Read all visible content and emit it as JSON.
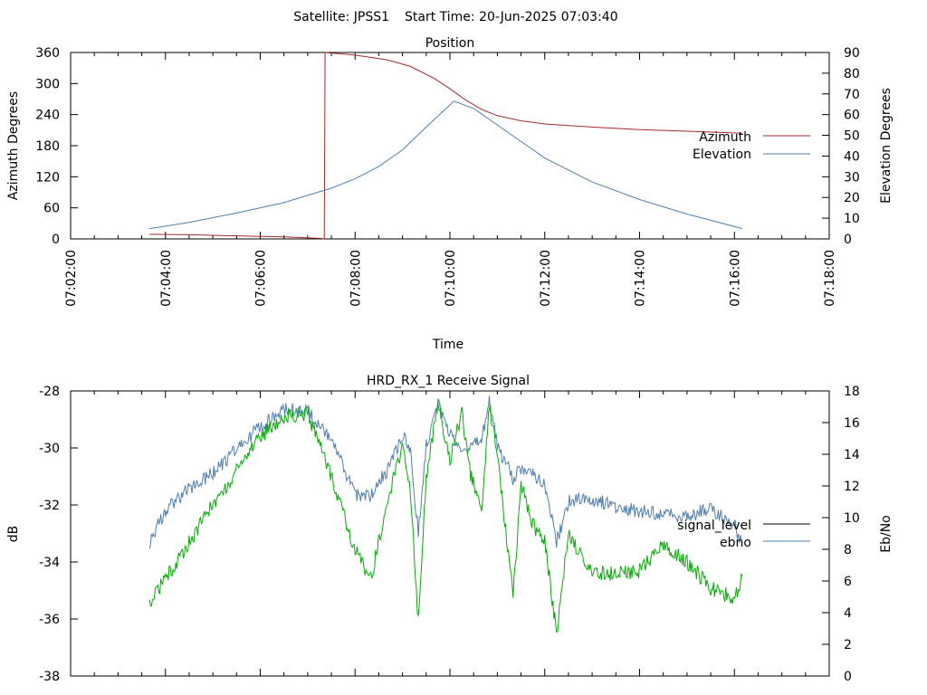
{
  "header": {
    "satellite_label": "Satellite: JPSS1",
    "start_time_label": "Start Time: 20-Jun-2025 07:03:40"
  },
  "chart_data": [
    {
      "type": "line",
      "title": "Position",
      "xlabel": "Time",
      "ylabel": "Azimuth Degrees",
      "y2label": "Elevation Degrees",
      "xlim": [
        "07:02:00",
        "07:18:00"
      ],
      "ylim": [
        0,
        360
      ],
      "y2lim": [
        0,
        90
      ],
      "x_ticks": [
        "07:02:00",
        "07:04:00",
        "07:06:00",
        "07:08:00",
        "07:10:00",
        "07:12:00",
        "07:14:00",
        "07:16:00",
        "07:18:00"
      ],
      "y_ticks": [
        "0",
        "60",
        "120",
        "180",
        "240",
        "300",
        "360"
      ],
      "y2_ticks": [
        "0",
        "10",
        "20",
        "30",
        "40",
        "50",
        "60",
        "70",
        "80",
        "90"
      ],
      "grid": false,
      "legend_position": "right",
      "series": [
        {
          "name": "Azimuth",
          "axis": "left",
          "color": "#a52a2a",
          "x": [
            "07:03:40",
            "07:04:30",
            "07:05:30",
            "07:06:30",
            "07:07:15",
            "07:07:21",
            "07:07:22",
            "07:08:00",
            "07:08:40",
            "07:09:10",
            "07:09:40",
            "07:10:00",
            "07:10:20",
            "07:10:40",
            "07:11:00",
            "07:11:30",
            "07:12:00",
            "07:13:00",
            "07:14:00",
            "07:15:00",
            "07:16:10"
          ],
          "values": [
            9,
            8,
            6,
            4,
            1,
            0,
            360,
            355,
            346,
            333,
            310,
            290,
            268,
            250,
            238,
            228,
            222,
            216,
            211,
            208,
            204
          ]
        },
        {
          "name": "Elevation",
          "axis": "right",
          "color": "#4f7fb4",
          "x": [
            "07:03:40",
            "07:04:30",
            "07:05:30",
            "07:06:30",
            "07:07:30",
            "07:08:00",
            "07:08:30",
            "07:09:00",
            "07:09:30",
            "07:10:05",
            "07:10:30",
            "07:11:00",
            "07:11:30",
            "07:12:00",
            "07:13:00",
            "07:14:00",
            "07:15:00",
            "07:16:10"
          ],
          "values": [
            5,
            8,
            12.5,
            17.5,
            24.5,
            29,
            35,
            43,
            54,
            66.5,
            63,
            55,
            47,
            39,
            27.5,
            19,
            12,
            5
          ]
        }
      ]
    },
    {
      "type": "line",
      "title": "HRD_RX_1 Receive Signal",
      "ylabel": "dB",
      "y2label": "Eb/No",
      "xlim": [
        "07:02:00",
        "07:18:00"
      ],
      "ylim": [
        -38,
        -28
      ],
      "y2lim": [
        0,
        18
      ],
      "y_ticks": [
        "-28",
        "-30",
        "-32",
        "-34",
        "-36",
        "-38"
      ],
      "y2_ticks": [
        "0",
        "2",
        "4",
        "6",
        "8",
        "10",
        "12",
        "14",
        "16",
        "18"
      ],
      "grid": false,
      "legend_position": "right",
      "series": [
        {
          "name": "signal_level",
          "axis": "left",
          "color": "#00b000",
          "x": [
            "07:03:40",
            "07:04:00",
            "07:04:30",
            "07:05:00",
            "07:05:30",
            "07:06:00",
            "07:06:30",
            "07:07:00",
            "07:07:30",
            "07:08:00",
            "07:08:10",
            "07:08:20",
            "07:08:40",
            "07:09:00",
            "07:09:10",
            "07:09:20",
            "07:09:30",
            "07:09:45",
            "07:10:00",
            "07:10:15",
            "07:10:25",
            "07:10:40",
            "07:10:50",
            "07:11:00",
            "07:11:20",
            "07:11:30",
            "07:11:45",
            "07:12:00",
            "07:12:15",
            "07:12:30",
            "07:13:00",
            "07:13:30",
            "07:14:00",
            "07:14:30",
            "07:15:00",
            "07:15:30",
            "07:16:00",
            "07:16:10"
          ],
          "values": [
            -35.5,
            -34.6,
            -33.3,
            -32,
            -30.8,
            -29.6,
            -28.9,
            -28.8,
            -31,
            -33.6,
            -34.1,
            -34.6,
            -32,
            -29.9,
            -31.5,
            -36.1,
            -31,
            -28.3,
            -30.5,
            -28.7,
            -30.8,
            -32.3,
            -28.5,
            -30.3,
            -35.2,
            -31.2,
            -32.7,
            -33.3,
            -36.5,
            -33,
            -34.4,
            -34.4,
            -34.3,
            -33.4,
            -34,
            -34.9,
            -35.3,
            -34.5
          ]
        },
        {
          "name": "ebno",
          "axis": "right",
          "color": "#4f7fb4",
          "x": [
            "07:03:40",
            "07:04:00",
            "07:04:30",
            "07:05:00",
            "07:05:30",
            "07:06:00",
            "07:06:30",
            "07:07:00",
            "07:07:30",
            "07:08:00",
            "07:08:20",
            "07:08:40",
            "07:09:00",
            "07:09:10",
            "07:09:20",
            "07:09:30",
            "07:09:45",
            "07:10:00",
            "07:10:15",
            "07:10:25",
            "07:10:40",
            "07:10:50",
            "07:11:00",
            "07:11:20",
            "07:11:30",
            "07:11:45",
            "07:12:00",
            "07:12:15",
            "07:12:30",
            "07:13:00",
            "07:13:30",
            "07:14:00",
            "07:14:30",
            "07:15:00",
            "07:15:30",
            "07:16:00",
            "07:16:10"
          ],
          "values": [
            8.5,
            10.5,
            11.8,
            12.8,
            14.3,
            15.8,
            16.8,
            16.8,
            14.8,
            11.5,
            11.3,
            13,
            15.2,
            14.2,
            9,
            14.5,
            17.2,
            15.3,
            14.3,
            14.5,
            14.8,
            17.4,
            14.5,
            12.5,
            13.2,
            12.8,
            12.2,
            8.5,
            11,
            11.2,
            10.7,
            10.4,
            10.2,
            10.1,
            10.6,
            9.5,
            8.4
          ]
        }
      ]
    }
  ]
}
